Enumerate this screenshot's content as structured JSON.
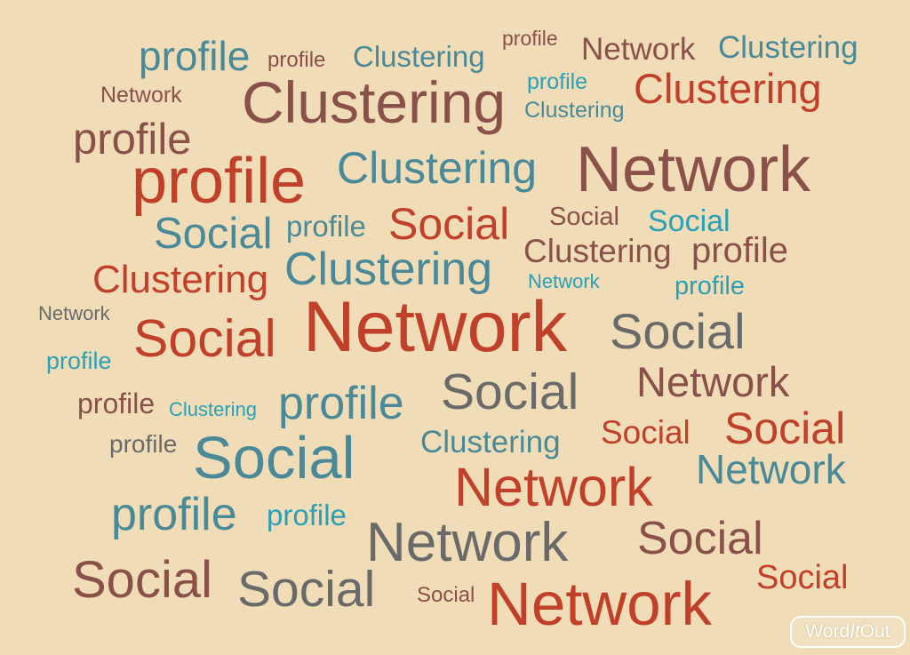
{
  "colors": {
    "background": "#f0ddb8",
    "red": "#c0402a",
    "brown": "#8a504a",
    "teal": "#4a8a98",
    "cyan": "#2aa0b8",
    "gray": "#6a6a6a"
  },
  "words": [
    {
      "text": "profile",
      "color": "teal"
    },
    {
      "text": "profile",
      "color": "brown"
    },
    {
      "text": "Clustering",
      "color": "teal"
    },
    {
      "text": "profile",
      "color": "brown"
    },
    {
      "text": "Network",
      "color": "brown"
    },
    {
      "text": "Clustering",
      "color": "teal"
    },
    {
      "text": "Network",
      "color": "brown"
    },
    {
      "text": "Clustering",
      "color": "brown"
    },
    {
      "text": "profile",
      "color": "cyan"
    },
    {
      "text": "Clustering",
      "color": "red"
    },
    {
      "text": "Clustering",
      "color": "teal"
    },
    {
      "text": "profile",
      "color": "brown"
    },
    {
      "text": "profile",
      "color": "red"
    },
    {
      "text": "Clustering",
      "color": "teal"
    },
    {
      "text": "Network",
      "color": "brown"
    },
    {
      "text": "Social",
      "color": "teal"
    },
    {
      "text": "profile",
      "color": "teal"
    },
    {
      "text": "Social",
      "color": "red"
    },
    {
      "text": "Social",
      "color": "brown"
    },
    {
      "text": "Social",
      "color": "cyan"
    },
    {
      "text": "Clustering",
      "color": "brown"
    },
    {
      "text": "profile",
      "color": "brown"
    },
    {
      "text": "Clustering",
      "color": "red"
    },
    {
      "text": "Clustering",
      "color": "teal"
    },
    {
      "text": "Network",
      "color": "cyan"
    },
    {
      "text": "profile",
      "color": "cyan"
    },
    {
      "text": "Network",
      "color": "gray"
    },
    {
      "text": "Network",
      "color": "red"
    },
    {
      "text": "Social",
      "color": "red"
    },
    {
      "text": "Social",
      "color": "gray"
    },
    {
      "text": "profile",
      "color": "cyan"
    },
    {
      "text": "Network",
      "color": "brown"
    },
    {
      "text": "profile",
      "color": "brown"
    },
    {
      "text": "Clustering",
      "color": "cyan"
    },
    {
      "text": "profile",
      "color": "teal"
    },
    {
      "text": "Social",
      "color": "gray"
    },
    {
      "text": "Social",
      "color": "red"
    },
    {
      "text": "Social",
      "color": "red"
    },
    {
      "text": "profile",
      "color": "gray"
    },
    {
      "text": "Social",
      "color": "teal"
    },
    {
      "text": "Clustering",
      "color": "teal"
    },
    {
      "text": "Network",
      "color": "teal"
    },
    {
      "text": "Network",
      "color": "red"
    },
    {
      "text": "profile",
      "color": "teal"
    },
    {
      "text": "profile",
      "color": "cyan"
    },
    {
      "text": "Network",
      "color": "gray"
    },
    {
      "text": "Social",
      "color": "brown"
    },
    {
      "text": "Social",
      "color": "brown"
    },
    {
      "text": "Social",
      "color": "gray"
    },
    {
      "text": "Social",
      "color": "red"
    },
    {
      "text": "Network",
      "color": "red"
    },
    {
      "text": "Social",
      "color": "brown"
    }
  ],
  "logo": {
    "word": "Word",
    "it": "It",
    "out": "Out"
  }
}
